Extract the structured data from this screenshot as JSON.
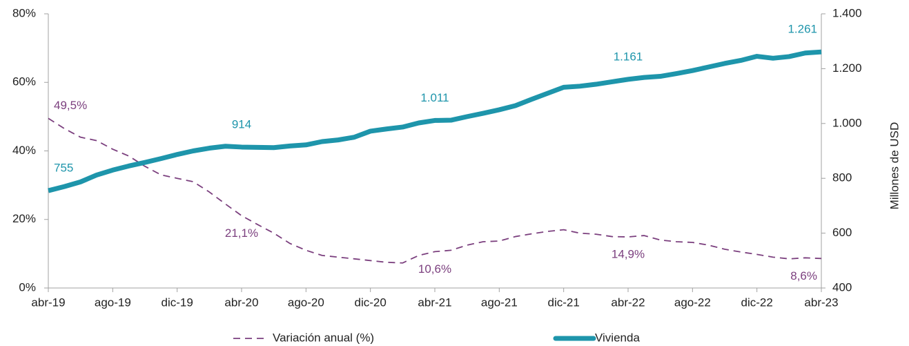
{
  "chart_data": {
    "type": "line",
    "y2label": "Millones de USD",
    "categories": [
      "abr-19",
      null,
      null,
      null,
      "ago-19",
      null,
      null,
      null,
      "dic-19",
      null,
      null,
      null,
      "abr-20",
      null,
      null,
      null,
      "ago-20",
      null,
      null,
      null,
      "dic-20",
      null,
      null,
      null,
      "abr-21",
      null,
      null,
      null,
      "ago-21",
      null,
      null,
      null,
      "dic-21",
      null,
      null,
      null,
      "abr-22",
      null,
      null,
      null,
      "ago-22",
      null,
      null,
      null,
      "dic-22",
      null,
      null,
      null,
      "abr-23"
    ],
    "ylim": [
      0,
      80
    ],
    "yticks": [
      {
        "value": 0,
        "label": "0%"
      },
      {
        "value": 20,
        "label": "20%"
      },
      {
        "value": 40,
        "label": "40%"
      },
      {
        "value": 60,
        "label": "60%"
      },
      {
        "value": 80,
        "label": "80%"
      }
    ],
    "y2lim": [
      400,
      1400
    ],
    "y2ticks": [
      400,
      600,
      800,
      {
        "value": 1000,
        "label": "1.000"
      },
      {
        "value": 1200,
        "label": "1.200"
      },
      {
        "value": 1400,
        "label": "1.400"
      }
    ],
    "legend": "bottom",
    "series": [
      {
        "name": "Variación anual (%)",
        "color": "#7b3f7e",
        "line_style": "dashed",
        "axis": "y",
        "values": [
          49.5,
          46.5,
          44,
          43,
          40.5,
          38.5,
          35.5,
          33,
          32,
          31,
          28,
          24.5,
          21.1,
          18.5,
          16,
          13,
          11,
          9.5,
          9,
          8.5,
          8,
          7.5,
          7.3,
          9.5,
          10.6,
          11,
          12.5,
          13.5,
          13.7,
          15,
          15.8,
          16.5,
          17,
          16,
          15.7,
          15,
          14.9,
          15.3,
          14,
          13.5,
          13.3,
          12.5,
          11.3,
          10.5,
          9.8,
          9,
          8.5,
          8.8,
          8.6
        ],
        "value_labels": [
          "49,5%",
          null,
          null,
          null,
          null,
          null,
          null,
          null,
          null,
          null,
          null,
          null,
          "21,1%",
          null,
          null,
          null,
          null,
          null,
          null,
          null,
          null,
          null,
          null,
          null,
          "10,6%",
          null,
          null,
          null,
          null,
          null,
          null,
          null,
          null,
          null,
          null,
          null,
          "14,9%",
          null,
          null,
          null,
          null,
          null,
          null,
          null,
          null,
          null,
          null,
          null,
          "8,6%"
        ]
      },
      {
        "name": "Vivienda",
        "color": "#1e95ab",
        "line_style": "solid",
        "axis": "y2",
        "values": [
          755,
          770,
          787,
          812,
          830,
          845,
          858,
          872,
          887,
          900,
          910,
          917,
          914,
          913,
          912,
          918,
          922,
          934,
          940,
          950,
          972,
          980,
          987,
          1002,
          1011,
          1012,
          1025,
          1037,
          1050,
          1065,
          1088,
          1110,
          1132,
          1136,
          1143,
          1152,
          1161,
          1168,
          1172,
          1182,
          1193,
          1206,
          1219,
          1230,
          1245,
          1238,
          1244,
          1257,
          1261
        ],
        "value_labels": [
          "755",
          null,
          null,
          null,
          null,
          null,
          null,
          null,
          null,
          null,
          null,
          null,
          "914",
          null,
          null,
          null,
          null,
          null,
          null,
          null,
          null,
          null,
          null,
          null,
          "1.011",
          null,
          null,
          null,
          null,
          null,
          null,
          null,
          null,
          null,
          null,
          null,
          "1.161",
          null,
          null,
          null,
          null,
          null,
          null,
          null,
          null,
          null,
          null,
          null,
          "1.261"
        ]
      }
    ]
  }
}
